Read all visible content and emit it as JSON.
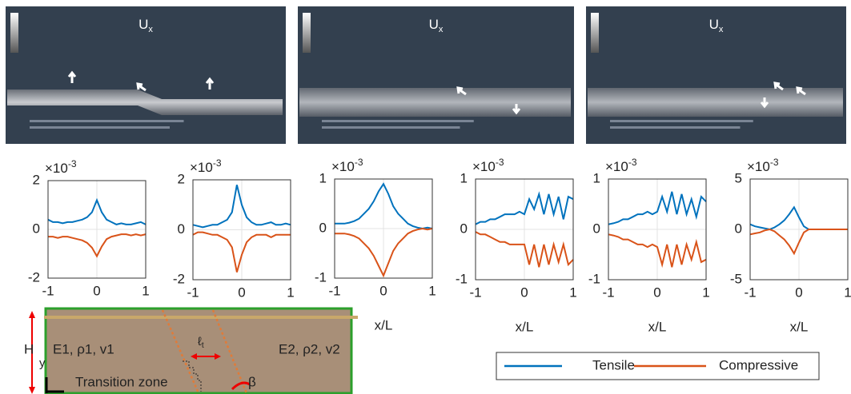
{
  "simulations": [
    {
      "label": "U",
      "subscript": "x"
    },
    {
      "label": "U",
      "subscript": "x"
    },
    {
      "label": "U",
      "subscript": "x"
    }
  ],
  "chart_data": [
    {
      "type": "line",
      "y_multiplier": "×10",
      "y_exponent": "-3",
      "x": [
        -1,
        -0.9,
        -0.8,
        -0.7,
        -0.6,
        -0.5,
        -0.4,
        -0.3,
        -0.2,
        -0.1,
        0,
        0.1,
        0.2,
        0.3,
        0.4,
        0.5,
        0.6,
        0.7,
        0.8,
        0.9,
        1
      ],
      "series": [
        {
          "values": [
            0.4,
            0.3,
            0.3,
            0.25,
            0.3,
            0.3,
            0.35,
            0.4,
            0.5,
            0.7,
            1.2,
            0.7,
            0.4,
            0.3,
            0.2,
            0.25,
            0.2,
            0.2,
            0.25,
            0.3,
            0.2
          ]
        },
        {
          "values": [
            -0.3,
            -0.3,
            -0.35,
            -0.3,
            -0.3,
            -0.35,
            -0.4,
            -0.45,
            -0.55,
            -0.75,
            -1.1,
            -0.7,
            -0.4,
            -0.3,
            -0.25,
            -0.2,
            -0.2,
            -0.25,
            -0.2,
            -0.25,
            -0.2
          ]
        }
      ],
      "xlim": [
        -1,
        1
      ],
      "ylim": [
        -2,
        2
      ],
      "xticks": [
        -1,
        0,
        1
      ],
      "yticks": [
        -2,
        0,
        2
      ],
      "grid": true
    },
    {
      "type": "line",
      "y_multiplier": "×10",
      "y_exponent": "-3",
      "x": [
        -1,
        -0.9,
        -0.8,
        -0.7,
        -0.6,
        -0.5,
        -0.4,
        -0.3,
        -0.2,
        -0.1,
        0,
        0.1,
        0.2,
        0.3,
        0.4,
        0.5,
        0.6,
        0.7,
        0.8,
        0.9,
        1
      ],
      "series": [
        {
          "values": [
            0.2,
            0.15,
            0.1,
            0.15,
            0.2,
            0.2,
            0.3,
            0.4,
            0.7,
            1.8,
            1.0,
            0.5,
            0.3,
            0.2,
            0.2,
            0.25,
            0.3,
            0.2,
            0.2,
            0.25,
            0.2
          ]
        },
        {
          "values": [
            -0.2,
            -0.1,
            -0.1,
            -0.15,
            -0.2,
            -0.2,
            -0.3,
            -0.4,
            -0.7,
            -1.7,
            -1.0,
            -0.5,
            -0.3,
            -0.2,
            -0.2,
            -0.2,
            -0.3,
            -0.2,
            -0.2,
            -0.2,
            -0.2
          ]
        }
      ],
      "xlim": [
        -1,
        1
      ],
      "ylim": [
        -2,
        2
      ],
      "xticks": [
        -1,
        0,
        1
      ],
      "yticks": [
        -2,
        0,
        2
      ],
      "grid": true
    },
    {
      "type": "line",
      "y_multiplier": "×10",
      "y_exponent": "-3",
      "xlabel": "x/L",
      "x": [
        -1,
        -0.9,
        -0.8,
        -0.7,
        -0.6,
        -0.5,
        -0.4,
        -0.3,
        -0.2,
        -0.1,
        0,
        0.1,
        0.2,
        0.3,
        0.4,
        0.5,
        0.6,
        0.7,
        0.8,
        0.9,
        1
      ],
      "series": [
        {
          "values": [
            0.1,
            0.1,
            0.1,
            0.12,
            0.15,
            0.2,
            0.3,
            0.4,
            0.55,
            0.75,
            0.9,
            0.7,
            0.45,
            0.3,
            0.2,
            0.1,
            0.05,
            0.02,
            0,
            0.02,
            0
          ]
        },
        {
          "values": [
            -0.1,
            -0.1,
            -0.1,
            -0.12,
            -0.15,
            -0.2,
            -0.3,
            -0.4,
            -0.55,
            -0.75,
            -0.95,
            -0.7,
            -0.45,
            -0.3,
            -0.2,
            -0.1,
            -0.05,
            -0.02,
            0,
            -0.02,
            0
          ]
        }
      ],
      "xlim": [
        -1,
        1
      ],
      "ylim": [
        -1,
        1
      ],
      "xticks": [
        -1,
        0,
        1
      ],
      "yticks": [
        -1,
        0,
        1
      ],
      "grid": true
    },
    {
      "type": "line",
      "y_multiplier": "×10",
      "y_exponent": "-3",
      "xlabel": "x/L",
      "x": [
        -1,
        -0.9,
        -0.8,
        -0.7,
        -0.6,
        -0.5,
        -0.4,
        -0.3,
        -0.2,
        -0.1,
        0,
        0.1,
        0.2,
        0.3,
        0.4,
        0.5,
        0.6,
        0.7,
        0.8,
        0.9,
        1
      ],
      "series": [
        {
          "values": [
            0.1,
            0.15,
            0.15,
            0.2,
            0.2,
            0.25,
            0.3,
            0.3,
            0.3,
            0.35,
            0.3,
            0.6,
            0.4,
            0.7,
            0.3,
            0.7,
            0.3,
            0.65,
            0.2,
            0.65,
            0.6
          ]
        },
        {
          "values": [
            -0.05,
            -0.1,
            -0.1,
            -0.15,
            -0.2,
            -0.25,
            -0.25,
            -0.3,
            -0.3,
            -0.3,
            -0.3,
            -0.7,
            -0.3,
            -0.75,
            -0.3,
            -0.7,
            -0.3,
            -0.65,
            -0.3,
            -0.7,
            -0.6
          ]
        }
      ],
      "xlim": [
        -1,
        1
      ],
      "ylim": [
        -1,
        1
      ],
      "xticks": [
        -1,
        0,
        1
      ],
      "yticks": [
        -1,
        0,
        1
      ],
      "grid": true
    },
    {
      "type": "line",
      "y_multiplier": "×10",
      "y_exponent": "-3",
      "xlabel": "x/L",
      "x": [
        -1,
        -0.9,
        -0.8,
        -0.7,
        -0.6,
        -0.5,
        -0.4,
        -0.3,
        -0.2,
        -0.1,
        0,
        0.1,
        0.2,
        0.3,
        0.4,
        0.5,
        0.6,
        0.7,
        0.8,
        0.9,
        1
      ],
      "series": [
        {
          "values": [
            0.1,
            0.12,
            0.15,
            0.2,
            0.2,
            0.25,
            0.3,
            0.3,
            0.35,
            0.3,
            0.35,
            0.65,
            0.35,
            0.75,
            0.3,
            0.7,
            0.3,
            0.6,
            0.25,
            0.65,
            0.55
          ]
        },
        {
          "values": [
            -0.1,
            -0.12,
            -0.15,
            -0.2,
            -0.2,
            -0.25,
            -0.3,
            -0.3,
            -0.35,
            -0.3,
            -0.35,
            -0.7,
            -0.3,
            -0.75,
            -0.3,
            -0.7,
            -0.3,
            -0.6,
            -0.25,
            -0.65,
            -0.6
          ]
        }
      ],
      "xlim": [
        -1,
        1
      ],
      "ylim": [
        -1,
        1
      ],
      "xticks": [
        -1,
        0,
        1
      ],
      "yticks": [
        -1,
        0,
        1
      ],
      "grid": true
    },
    {
      "type": "line",
      "y_multiplier": "×10",
      "y_exponent": "-3",
      "xlabel": "x/L",
      "x": [
        -1,
        -0.9,
        -0.8,
        -0.7,
        -0.6,
        -0.5,
        -0.4,
        -0.3,
        -0.2,
        -0.1,
        0,
        0.1,
        0.2,
        0.3,
        0.4,
        0.5,
        0.6,
        0.7,
        0.8,
        0.9,
        1
      ],
      "series": [
        {
          "values": [
            0.5,
            0.3,
            0.2,
            0.1,
            0,
            0.2,
            0.5,
            0.9,
            1.5,
            2.2,
            1.2,
            0.3,
            0,
            0,
            0,
            0,
            0,
            0,
            0,
            0,
            0
          ]
        },
        {
          "values": [
            -0.5,
            -0.4,
            -0.3,
            -0.1,
            0,
            -0.2,
            -0.6,
            -1,
            -1.6,
            -2.4,
            -1.3,
            -0.3,
            0,
            0,
            0,
            0,
            0,
            0,
            0,
            0,
            0
          ]
        }
      ],
      "xlim": [
        -1,
        1
      ],
      "ylim": [
        -5,
        5
      ],
      "xticks": [
        -1,
        0,
        1
      ],
      "yticks": [
        -5,
        0,
        5
      ],
      "grid": true
    }
  ],
  "legend": [
    {
      "name": "Tensile",
      "color": "#0072bd"
    },
    {
      "name": "Compressive",
      "color": "#d95319"
    }
  ],
  "schematic": {
    "height_label": "H",
    "y_label": "y",
    "left_material": "E1, ρ1, v1",
    "right_material": "E2, ρ2, v2",
    "zone_label": "Transition zone",
    "length_label": "ℓ",
    "length_subscript": "t",
    "angle_label": "β"
  }
}
